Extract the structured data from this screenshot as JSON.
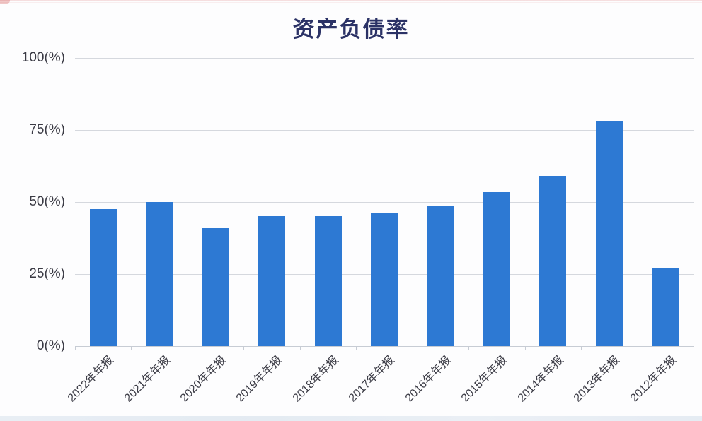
{
  "chart_data": {
    "type": "bar",
    "title": "资产负债率",
    "categories": [
      "2022年年报",
      "2021年年报",
      "2020年年报",
      "2019年年报",
      "2018年年报",
      "2017年年报",
      "2016年年报",
      "2015年年报",
      "2014年年报",
      "2013年年报",
      "2012年年报"
    ],
    "values": [
      47.5,
      50,
      41,
      45,
      45,
      46,
      48.5,
      53.5,
      59,
      78,
      27
    ],
    "unit": "%",
    "xlabel": "",
    "ylabel": "",
    "ylim": [
      0,
      100
    ],
    "yticks": [
      {
        "value": 0,
        "label": "0(%)"
      },
      {
        "value": 25,
        "label": "25(%)"
      },
      {
        "value": 50,
        "label": "50(%)"
      },
      {
        "value": 75,
        "label": "75(%)"
      },
      {
        "value": 100,
        "label": "100(%)"
      }
    ],
    "grid": "horizontal",
    "legend": "none",
    "colors": {
      "bar": "#2d79d3",
      "title": "#2b3266",
      "axis_text": "#3a3a44",
      "gridline": "#d5d8de",
      "axis_line": "#c7ccd4",
      "background": "#fdfdfe"
    }
  }
}
